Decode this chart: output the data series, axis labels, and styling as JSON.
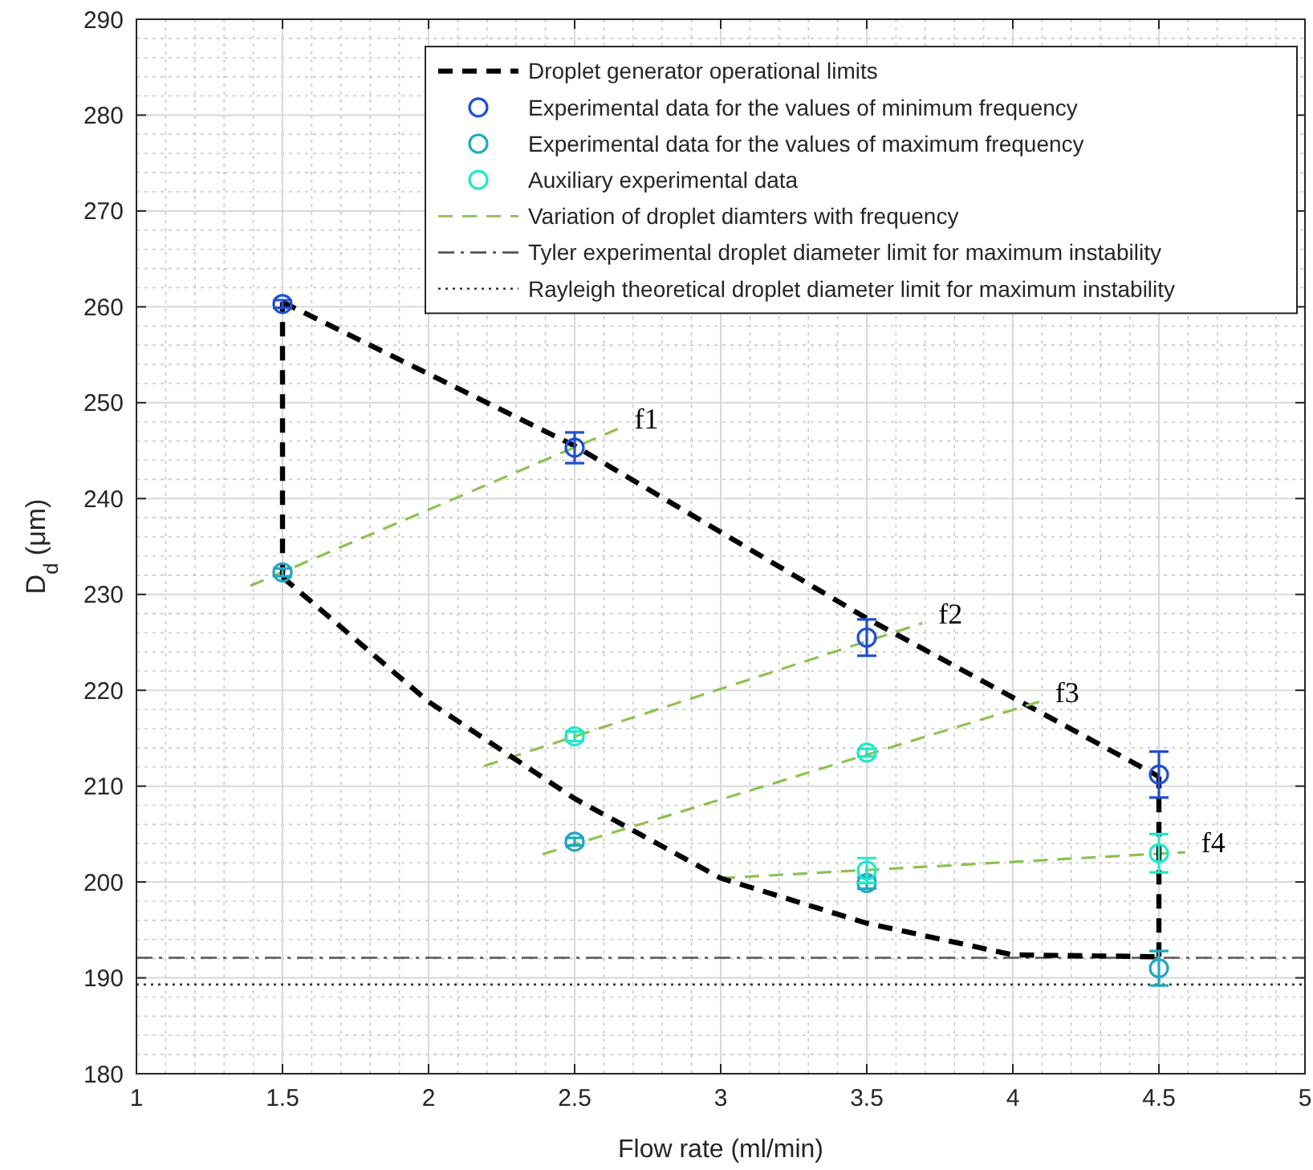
{
  "chart_data": {
    "type": "line",
    "xlabel": "Flow rate (ml/min)",
    "ylabel": "D$_{d}$ (μm)",
    "xlim": [
      1,
      5
    ],
    "xticks": [
      1,
      1.5,
      2,
      2.5,
      3,
      3.5,
      4,
      4.5,
      5
    ],
    "ylim": [
      180,
      290
    ],
    "yticks": [
      180,
      190,
      200,
      210,
      220,
      230,
      240,
      250,
      260,
      270,
      280,
      290
    ],
    "grid": true,
    "legend": "top right",
    "series": [
      {
        "name": "Droplet generator operational limits",
        "line_style": "dashed",
        "color": "#000000",
        "x": [
          1.5,
          2.5,
          3.5,
          4.5
        ],
        "values": [
          260.5,
          245.5,
          227.5,
          211
        ]
      },
      {
        "name": "Experimental data for the values of minimum frequency",
        "type": "scatter",
        "marker": "circle",
        "color": "#2050d0",
        "x": [
          1.5,
          2.5,
          3.5,
          4.5
        ],
        "values": [
          260.3,
          245.3,
          225.5,
          211.2
        ],
        "errors": [
          0.4,
          1.6,
          1.9,
          2.4
        ]
      },
      {
        "name": "Experimental data for the values of maximum frequency",
        "type": "scatter",
        "marker": "circle",
        "color": "#20a8c0",
        "x": [
          1.5,
          2.5,
          3.5,
          4.5
        ],
        "values": [
          232.3,
          204.2,
          199.9,
          191
        ],
        "errors": [
          0.4,
          0.4,
          0.6,
          1.8
        ]
      },
      {
        "name": "Auxiliary experimental data",
        "type": "scatter",
        "marker": "circle",
        "color": "#20e8c8",
        "x": [
          2.5,
          3.5,
          3.5,
          4.5
        ],
        "values": [
          215.2,
          213.5,
          201.2,
          203
        ],
        "errors": [
          0.5,
          0.4,
          1.3,
          2
        ]
      },
      {
        "name": "Variation of droplet diamters with frequency",
        "line_style": "dashed",
        "color": "#8cc152",
        "x": [
          1.39,
          2.65
        ],
        "values": [
          230.9,
          247.3
        ]
      },
      {
        "line_style": "dashed",
        "color": "#8cc152",
        "x": [
          2.19,
          3.69
        ],
        "values": [
          212.1,
          227
        ]
      },
      {
        "line_style": "dashed",
        "color": "#8cc152",
        "x": [
          2.39,
          4.09
        ],
        "values": [
          202.9,
          218.8
        ]
      },
      {
        "line_style": "dashed",
        "color": "#8cc152",
        "x": [
          3,
          4.59
        ],
        "values": [
          200.4,
          203.1
        ]
      },
      {
        "line_style": "dashed",
        "color": "#000000",
        "x": [
          1.5,
          2,
          2.5,
          3,
          3.5,
          4,
          4.5
        ],
        "values": [
          231.8,
          218.8,
          208.7,
          200.4,
          195.7,
          192.4,
          192.2
        ]
      },
      {
        "line_style": "dashed",
        "color": "#000000",
        "x": [
          1.5,
          1.5
        ],
        "values": [
          231.8,
          260.5
        ]
      },
      {
        "line_style": "dashed",
        "color": "#000000",
        "x": [
          4.5,
          4.5
        ],
        "values": [
          192.2,
          211
        ]
      }
    ],
    "ref_lines": [
      {
        "axis": "y",
        "value": 192.1,
        "label": "Tyler experimental droplet diameter limit for maximum instability",
        "color": "#555555",
        "line_style": "dashdot"
      },
      {
        "axis": "y",
        "value": 189.3,
        "label": "Rayleigh theoretical droplet diameter limit for maximum instability",
        "color": "#333333",
        "line_style": "dotted"
      }
    ],
    "annotations": [
      "f1",
      "f2",
      "f3",
      "f4"
    ]
  }
}
